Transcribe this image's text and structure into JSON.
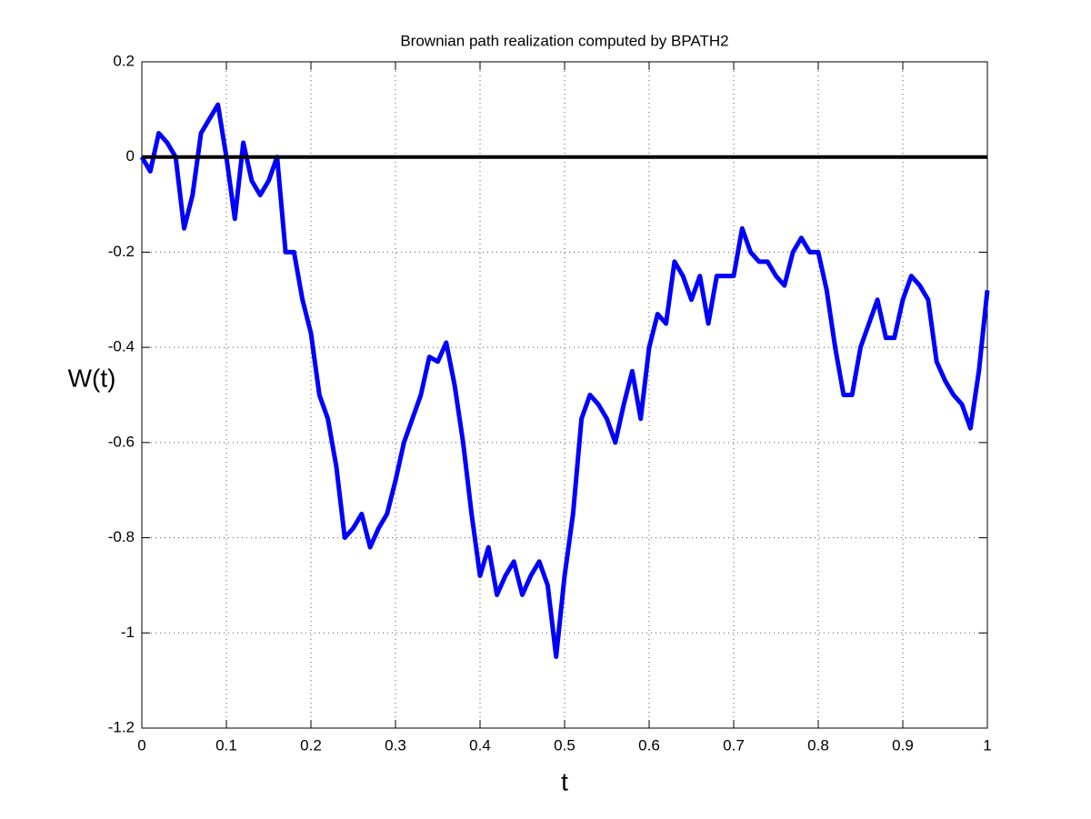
{
  "chart_data": {
    "type": "line",
    "title": "Brownian path realization computed by BPATH2",
    "xlabel": "t",
    "ylabel": "W(t)",
    "x": [
      0,
      0.01,
      0.02,
      0.03,
      0.04,
      0.05,
      0.06,
      0.07,
      0.08,
      0.09,
      0.1,
      0.11,
      0.12,
      0.13,
      0.14,
      0.15,
      0.16,
      0.17,
      0.18,
      0.19,
      0.2,
      0.21,
      0.22,
      0.23,
      0.24,
      0.25,
      0.26,
      0.27,
      0.28,
      0.29,
      0.3,
      0.31,
      0.32,
      0.33,
      0.34,
      0.35,
      0.36,
      0.37,
      0.38,
      0.39,
      0.4,
      0.41,
      0.42,
      0.43,
      0.44,
      0.45,
      0.46,
      0.47,
      0.48,
      0.49,
      0.5,
      0.51,
      0.52,
      0.53,
      0.54,
      0.55,
      0.56,
      0.57,
      0.58,
      0.59,
      0.6,
      0.61,
      0.62,
      0.63,
      0.64,
      0.65,
      0.66,
      0.67,
      0.68,
      0.69,
      0.7,
      0.71,
      0.72,
      0.73,
      0.74,
      0.75,
      0.76,
      0.77,
      0.78,
      0.79,
      0.8,
      0.81,
      0.82,
      0.83,
      0.84,
      0.85,
      0.86,
      0.87,
      0.88,
      0.89,
      0.9,
      0.91,
      0.92,
      0.93,
      0.94,
      0.95,
      0.96,
      0.97,
      0.98,
      0.99,
      1
    ],
    "series": [
      {
        "color": "#0000ff",
        "values": [
          0,
          -0.03,
          0.05,
          0.03,
          0,
          -0.15,
          -0.08,
          0.05,
          0.08,
          0.11,
          0,
          -0.13,
          0.03,
          -0.05,
          -0.08,
          -0.05,
          0,
          -0.2,
          -0.2,
          -0.3,
          -0.37,
          -0.5,
          -0.55,
          -0.65,
          -0.8,
          -0.78,
          -0.75,
          -0.82,
          -0.78,
          -0.75,
          -0.68,
          -0.6,
          -0.55,
          -0.5,
          -0.42,
          -0.43,
          -0.39,
          -0.48,
          -0.6,
          -0.75,
          -0.88,
          -0.82,
          -0.92,
          -0.88,
          -0.85,
          -0.92,
          -0.88,
          -0.85,
          -0.9,
          -1.05,
          -0.88,
          -0.75,
          -0.55,
          -0.5,
          -0.52,
          -0.55,
          -0.6,
          -0.52,
          -0.45,
          -0.55,
          -0.4,
          -0.33,
          -0.35,
          -0.22,
          -0.25,
          -0.3,
          -0.25,
          -0.35,
          -0.25,
          -0.25,
          -0.25,
          -0.15,
          -0.2,
          -0.22,
          -0.22,
          -0.25,
          -0.27,
          -0.2,
          -0.17,
          -0.2,
          -0.2,
          -0.28,
          -0.4,
          -0.5,
          -0.5,
          -0.4,
          -0.35,
          -0.3,
          -0.38,
          -0.38,
          -0.3,
          -0.25,
          -0.27,
          -0.3,
          -0.43,
          -0.47,
          -0.5,
          -0.52,
          -0.57,
          -0.45,
          -0.28
        ]
      }
    ],
    "reference_line": {
      "y": 0,
      "color": "#000000"
    },
    "xlim": [
      0,
      1
    ],
    "xticks": [
      0,
      0.1,
      0.2,
      0.3,
      0.4,
      0.5,
      0.6,
      0.7,
      0.8,
      0.9,
      1
    ],
    "ylim": [
      -1.2,
      0.2
    ],
    "yticks": [
      -1.2,
      -1,
      -0.8,
      -0.6,
      -0.4,
      -0.2,
      0,
      0.2
    ],
    "grid": true
  }
}
